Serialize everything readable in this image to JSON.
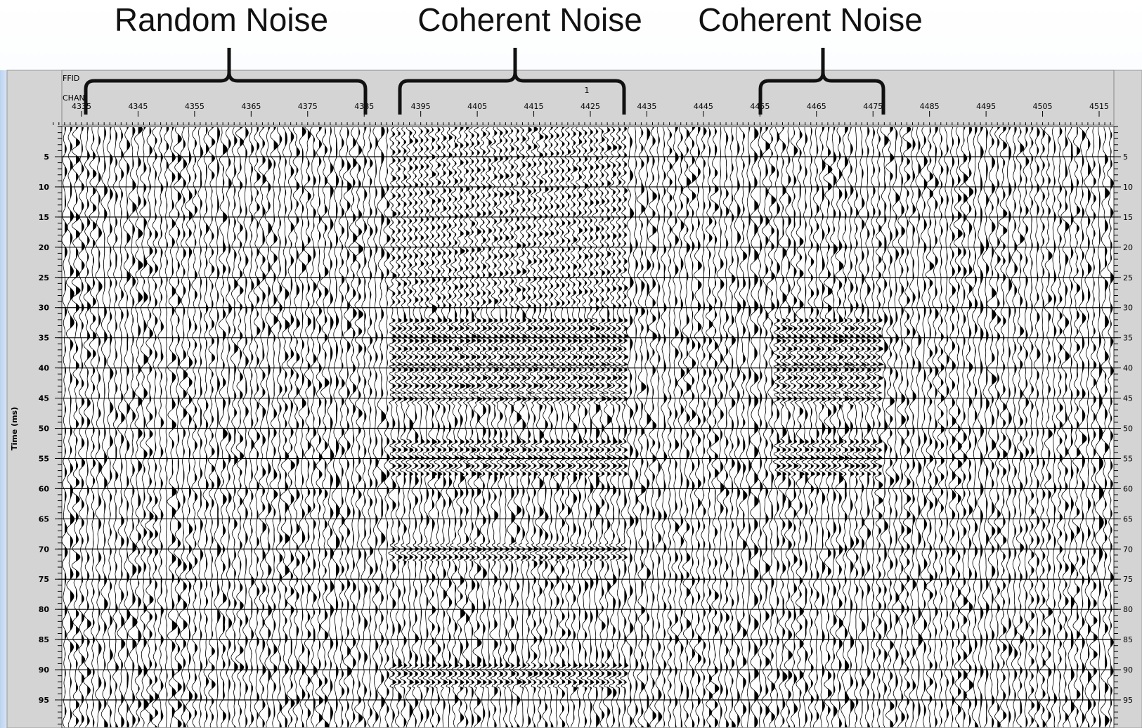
{
  "annotations": [
    "Random Noise",
    "Coherent Noise",
    "Coherent Noise"
  ],
  "header": {
    "ffid_label": "FFID",
    "chan_label": "CHAN",
    "ffid_value": "1"
  },
  "x_ticks": [
    4335,
    4345,
    4355,
    4365,
    4375,
    4385,
    4395,
    4405,
    4415,
    4425,
    4435,
    4445,
    4455,
    4465,
    4475,
    4485,
    4495,
    4505,
    4515
  ],
  "y_ticks": [
    5,
    10,
    15,
    20,
    25,
    30,
    35,
    40,
    45,
    50,
    55,
    60,
    65,
    70,
    75,
    80,
    85,
    90,
    95
  ],
  "y_axis_label": "Time (ms)"
}
